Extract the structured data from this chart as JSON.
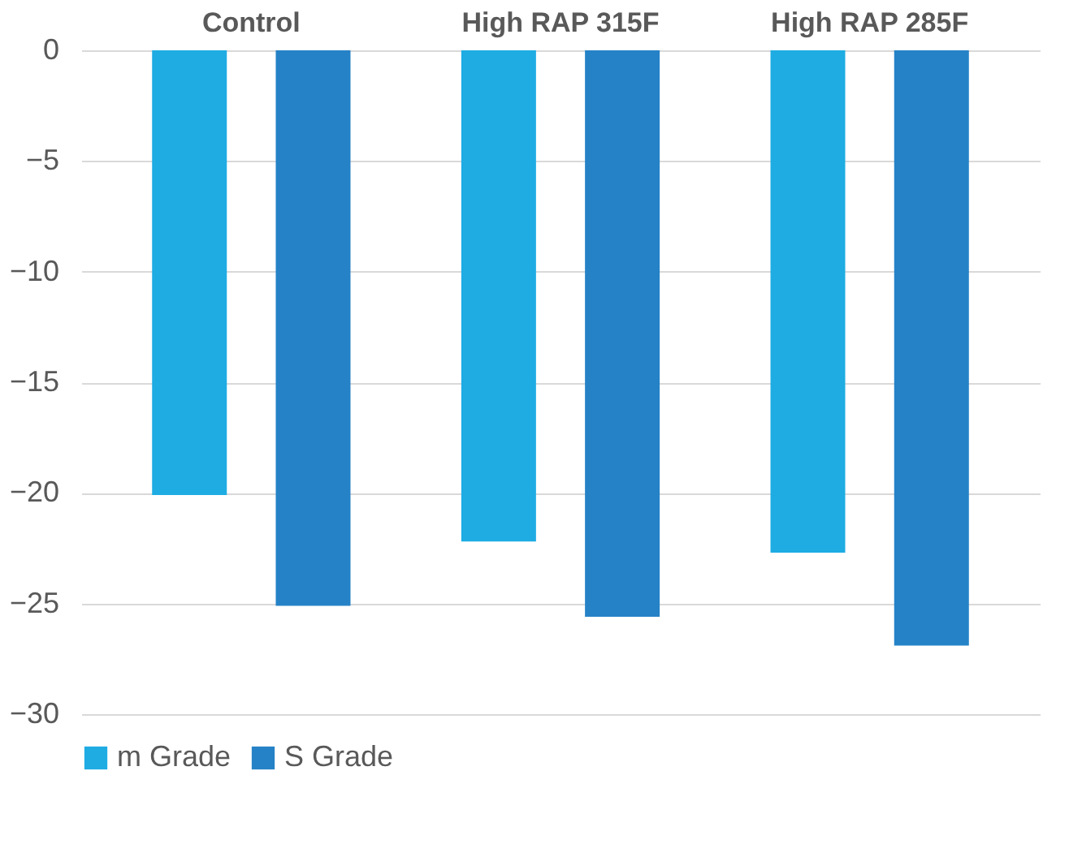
{
  "chart_data": {
    "type": "bar",
    "categories": [
      "Control",
      "High RAP 315F",
      "High RAP 285F"
    ],
    "series": [
      {
        "name": "m Grade",
        "color": "#1eace3",
        "values": [
          -20.1,
          -22.2,
          -22.7
        ]
      },
      {
        "name": "S Grade",
        "color": "#2582c7",
        "values": [
          -25.1,
          -25.6,
          -26.9
        ]
      }
    ],
    "ylim": [
      -30,
      0
    ],
    "yticks": [
      0,
      -5,
      -10,
      -15,
      -20,
      -25,
      -30
    ],
    "grid": "y",
    "legend": "bottom"
  }
}
